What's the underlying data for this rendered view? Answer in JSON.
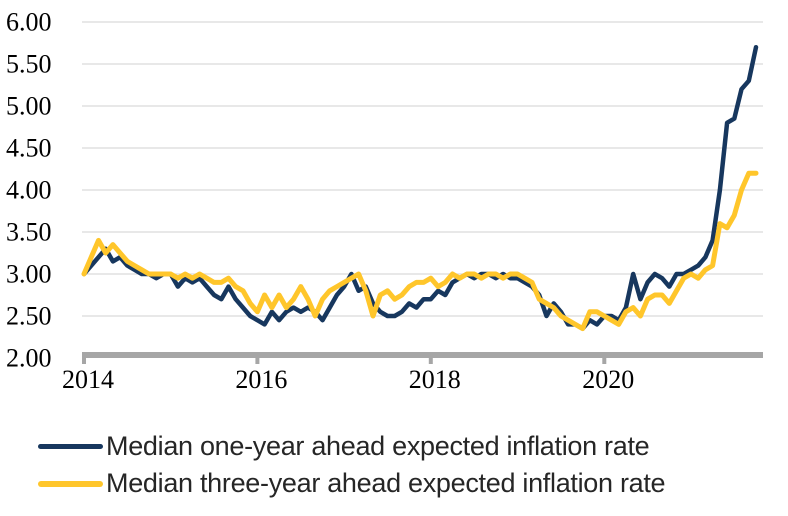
{
  "figure": {
    "background": "#FFFFFF",
    "title": ""
  },
  "chart_data": {
    "type": "line",
    "title": "",
    "xlabel": "",
    "ylabel": "",
    "x_start": "2014-01",
    "x_end": "2021-10",
    "frequency": "monthly",
    "ylim": [
      2.0,
      6.0
    ],
    "y_tick_step": 0.5,
    "y_tick_labels": [
      "6.00",
      "5.50",
      "5.00",
      "4.50",
      "4.00",
      "3.50",
      "3.00",
      "2.50",
      "2.00"
    ],
    "x_tick_labels": [
      "2014",
      "2016",
      "2018",
      "2020"
    ],
    "grid": "horizontal",
    "legend_position": "bottom-left",
    "colors": {
      "one_year_line": "#17375E",
      "three_year_line": "#FFC62B",
      "gridline": "#D9D9D9",
      "axis_bar": "#A6A6A6",
      "tick_text": "#000000",
      "legend_text": "#262626"
    },
    "series": [
      {
        "name": "Median one-year ahead expected inflation rate",
        "color": "#17375E",
        "values": [
          3.0,
          3.1,
          3.2,
          3.3,
          3.15,
          3.2,
          3.1,
          3.05,
          3.0,
          3.0,
          2.95,
          3.0,
          3.0,
          2.85,
          2.95,
          2.9,
          2.95,
          2.85,
          2.75,
          2.7,
          2.85,
          2.7,
          2.6,
          2.5,
          2.45,
          2.4,
          2.55,
          2.45,
          2.55,
          2.6,
          2.55,
          2.6,
          2.55,
          2.45,
          2.6,
          2.75,
          2.85,
          3.0,
          2.8,
          2.85,
          2.65,
          2.55,
          2.5,
          2.5,
          2.55,
          2.65,
          2.6,
          2.7,
          2.7,
          2.8,
          2.75,
          2.9,
          2.95,
          3.0,
          2.95,
          3.0,
          3.0,
          2.95,
          3.0,
          2.95,
          2.95,
          2.9,
          2.85,
          2.75,
          2.5,
          2.65,
          2.55,
          2.4,
          2.4,
          2.35,
          2.45,
          2.4,
          2.5,
          2.5,
          2.45,
          2.6,
          3.0,
          2.7,
          2.9,
          3.0,
          2.95,
          2.85,
          3.0,
          3.0,
          3.05,
          3.1,
          3.2,
          3.4,
          4.0,
          4.8,
          4.85,
          5.2,
          5.3,
          5.7
        ]
      },
      {
        "name": "Median three-year ahead expected inflation rate",
        "color": "#FFC62B",
        "values": [
          3.0,
          3.2,
          3.4,
          3.25,
          3.35,
          3.25,
          3.15,
          3.1,
          3.05,
          3.0,
          3.0,
          3.0,
          3.0,
          2.95,
          3.0,
          2.95,
          3.0,
          2.95,
          2.9,
          2.9,
          2.95,
          2.85,
          2.8,
          2.65,
          2.55,
          2.75,
          2.6,
          2.75,
          2.6,
          2.7,
          2.85,
          2.7,
          2.5,
          2.7,
          2.8,
          2.85,
          2.9,
          2.95,
          3.0,
          2.8,
          2.5,
          2.75,
          2.8,
          2.7,
          2.75,
          2.85,
          2.9,
          2.9,
          2.95,
          2.85,
          2.9,
          3.0,
          2.95,
          3.0,
          3.0,
          2.95,
          3.0,
          3.0,
          2.95,
          3.0,
          3.0,
          2.95,
          2.9,
          2.7,
          2.65,
          2.6,
          2.5,
          2.45,
          2.4,
          2.35,
          2.55,
          2.55,
          2.5,
          2.45,
          2.4,
          2.55,
          2.6,
          2.5,
          2.7,
          2.75,
          2.75,
          2.65,
          2.8,
          2.95,
          3.0,
          2.95,
          3.05,
          3.1,
          3.6,
          3.55,
          3.7,
          4.0,
          4.2,
          4.2
        ]
      }
    ],
    "legend": {
      "items": [
        {
          "label": "Median one-year ahead expected inflation rate"
        },
        {
          "label": "Median three-year ahead expected inflation rate"
        }
      ]
    }
  }
}
